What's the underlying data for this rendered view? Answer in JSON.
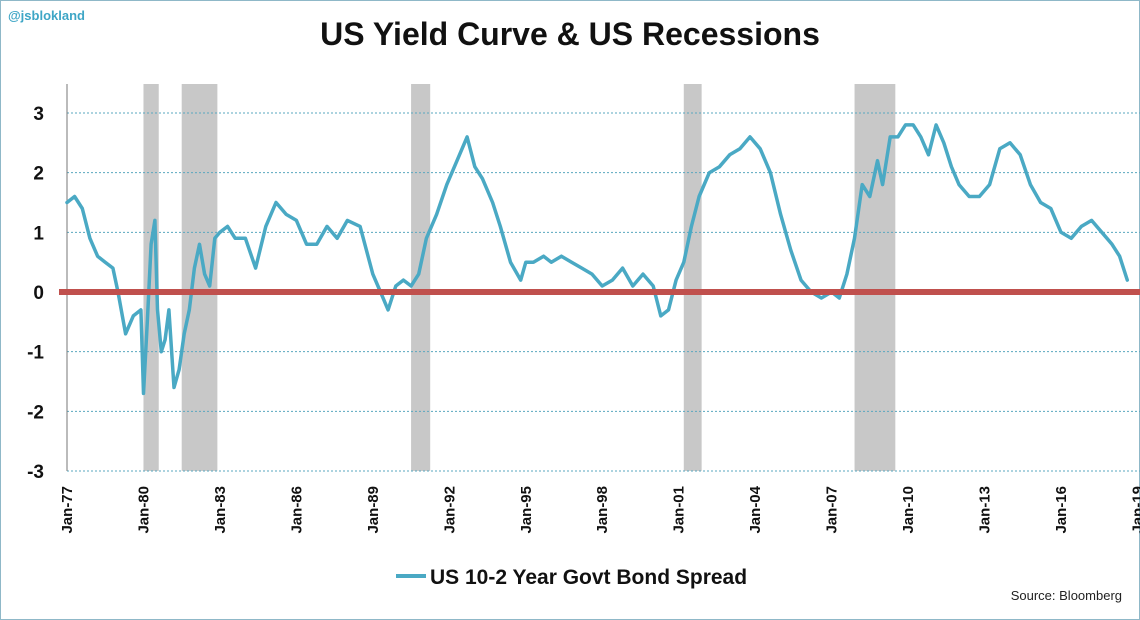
{
  "header": {
    "handle": "@jsblokland",
    "title": "US Yield Curve & US Recessions"
  },
  "footer": {
    "source": "Source:  Bloomberg"
  },
  "chart_data": {
    "type": "line",
    "title": "US Yield Curve & US Recessions",
    "xlabel": "",
    "ylabel": "",
    "xlim": [
      "1977-01",
      "2019-01"
    ],
    "ylim": [
      -3,
      3.5
    ],
    "y_ticks": [
      3,
      2,
      1,
      0,
      -1,
      -2,
      -3
    ],
    "x_ticks": [
      "Jan-77",
      "Jan-80",
      "Jan-83",
      "Jan-86",
      "Jan-89",
      "Jan-92",
      "Jan-95",
      "Jan-98",
      "Jan-01",
      "Jan-04",
      "Jan-07",
      "Jan-10",
      "Jan-13",
      "Jan-16",
      "Jan-19"
    ],
    "grid": "horizontal dashed",
    "legend_position": "bottom",
    "colors": {
      "spread": "#4aa9c4",
      "zero_line": "#c0504d",
      "recession": "#c8c8c8"
    },
    "recessions": [
      {
        "start": 1980.0,
        "end": 1980.6
      },
      {
        "start": 1981.5,
        "end": 1982.9
      },
      {
        "start": 1990.5,
        "end": 1991.25
      },
      {
        "start": 2001.2,
        "end": 2001.9
      },
      {
        "start": 2007.9,
        "end": 2009.5
      }
    ],
    "reference_line": {
      "y": 0
    },
    "series": [
      {
        "name": "US 10-2 Year Govt Bond Spread",
        "x": [
          1977.0,
          1977.3,
          1977.6,
          1977.9,
          1978.2,
          1978.5,
          1978.8,
          1979.0,
          1979.3,
          1979.6,
          1979.9,
          1980.0,
          1980.15,
          1980.3,
          1980.45,
          1980.55,
          1980.7,
          1980.85,
          1981.0,
          1981.2,
          1981.4,
          1981.6,
          1981.8,
          1982.0,
          1982.2,
          1982.4,
          1982.6,
          1982.8,
          1983.0,
          1983.3,
          1983.6,
          1984.0,
          1984.4,
          1984.8,
          1985.2,
          1985.6,
          1986.0,
          1986.4,
          1986.8,
          1987.2,
          1987.6,
          1988.0,
          1988.5,
          1989.0,
          1989.3,
          1989.6,
          1989.9,
          1990.2,
          1990.5,
          1990.8,
          1991.1,
          1991.5,
          1991.9,
          1992.3,
          1992.7,
          1993.0,
          1993.3,
          1993.7,
          1994.0,
          1994.4,
          1994.8,
          1995.0,
          1995.3,
          1995.7,
          1996.0,
          1996.4,
          1996.8,
          1997.2,
          1997.6,
          1998.0,
          1998.4,
          1998.8,
          1999.2,
          1999.6,
          2000.0,
          2000.3,
          2000.6,
          2000.9,
          2001.2,
          2001.5,
          2001.8,
          2002.2,
          2002.6,
          2003.0,
          2003.4,
          2003.8,
          2004.2,
          2004.6,
          2005.0,
          2005.4,
          2005.8,
          2006.2,
          2006.6,
          2007.0,
          2007.3,
          2007.6,
          2007.9,
          2008.2,
          2008.5,
          2008.8,
          2009.0,
          2009.3,
          2009.6,
          2009.9,
          2010.2,
          2010.5,
          2010.8,
          2011.1,
          2011.4,
          2011.7,
          2012.0,
          2012.4,
          2012.8,
          2013.2,
          2013.6,
          2014.0,
          2014.4,
          2014.8,
          2015.2,
          2015.6,
          2016.0,
          2016.4,
          2016.8,
          2017.2,
          2017.6,
          2018.0,
          2018.3,
          2018.6
        ],
        "values": [
          1.5,
          1.6,
          1.4,
          0.9,
          0.6,
          0.5,
          0.4,
          0.0,
          -0.7,
          -0.4,
          -0.3,
          -1.7,
          -0.5,
          0.8,
          1.2,
          -0.3,
          -1.0,
          -0.8,
          -0.3,
          -1.6,
          -1.3,
          -0.7,
          -0.3,
          0.4,
          0.8,
          0.3,
          0.1,
          0.9,
          1.0,
          1.1,
          0.9,
          0.9,
          0.4,
          1.1,
          1.5,
          1.3,
          1.2,
          0.8,
          0.8,
          1.1,
          0.9,
          1.2,
          1.1,
          0.3,
          0.0,
          -0.3,
          0.1,
          0.2,
          0.1,
          0.3,
          0.9,
          1.3,
          1.8,
          2.2,
          2.6,
          2.1,
          1.9,
          1.5,
          1.1,
          0.5,
          0.2,
          0.5,
          0.5,
          0.6,
          0.5,
          0.6,
          0.5,
          0.4,
          0.3,
          0.1,
          0.2,
          0.4,
          0.1,
          0.3,
          0.1,
          -0.4,
          -0.3,
          0.2,
          0.5,
          1.1,
          1.6,
          2.0,
          2.1,
          2.3,
          2.4,
          2.6,
          2.4,
          2.0,
          1.3,
          0.7,
          0.2,
          0.0,
          -0.1,
          0.0,
          -0.1,
          0.3,
          0.9,
          1.8,
          1.6,
          2.2,
          1.8,
          2.6,
          2.6,
          2.8,
          2.8,
          2.6,
          2.3,
          2.8,
          2.5,
          2.1,
          1.8,
          1.6,
          1.6,
          1.8,
          2.4,
          2.5,
          2.3,
          1.8,
          1.5,
          1.4,
          1.0,
          0.9,
          1.1,
          1.2,
          1.0,
          0.8,
          0.6,
          0.2
        ]
      }
    ]
  }
}
